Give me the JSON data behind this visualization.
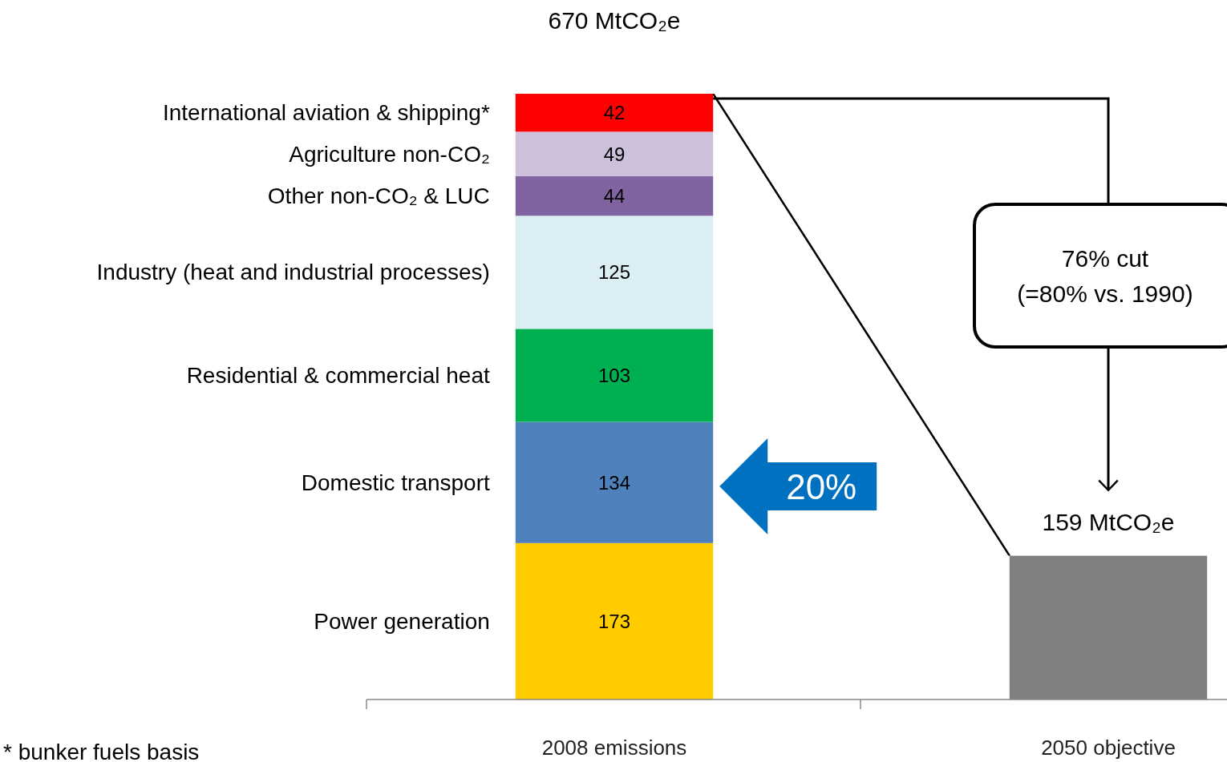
{
  "chart_data": {
    "type": "bar",
    "stacked": true,
    "categories": [
      "2008 emissions",
      "2050 objective"
    ],
    "series": [
      {
        "name": "Power generation",
        "color": "#ffcc00",
        "values": [
          173,
          null
        ],
        "value_labels": [
          "173",
          null
        ]
      },
      {
        "name": "Domestic transport",
        "color": "#4f81bd",
        "values": [
          134,
          null
        ],
        "value_labels": [
          "134",
          null
        ]
      },
      {
        "name": "Residential & commercial heat",
        "color": "#00b050",
        "values": [
          103,
          null
        ],
        "value_labels": [
          "103",
          null
        ]
      },
      {
        "name": "Industry (heat and industrial processes)",
        "color": "#dbeef4",
        "values": [
          125,
          null
        ],
        "value_labels": [
          "125",
          null
        ]
      },
      {
        "name": "Other non-CO₂ & LUC",
        "color": "#8064a2",
        "values": [
          44,
          null
        ],
        "value_labels": [
          "44",
          null
        ]
      },
      {
        "name": "Agriculture non-CO₂",
        "color": "#ccc0da",
        "values": [
          49,
          null
        ],
        "value_labels": [
          "49",
          null
        ]
      },
      {
        "name": "International aviation & shipping*",
        "color": "#ff0000",
        "values": [
          42,
          null
        ],
        "value_labels": [
          "42",
          null
        ]
      },
      {
        "color": "#808080",
        "values": [
          null,
          159
        ]
      }
    ],
    "totals": [
      "670 MtCO₂e",
      "159 MtCO₂e"
    ],
    "annotations": [
      "20%",
      "76% cut\n(=80% vs. 1990)",
      "* bunker fuels basis"
    ]
  }
}
